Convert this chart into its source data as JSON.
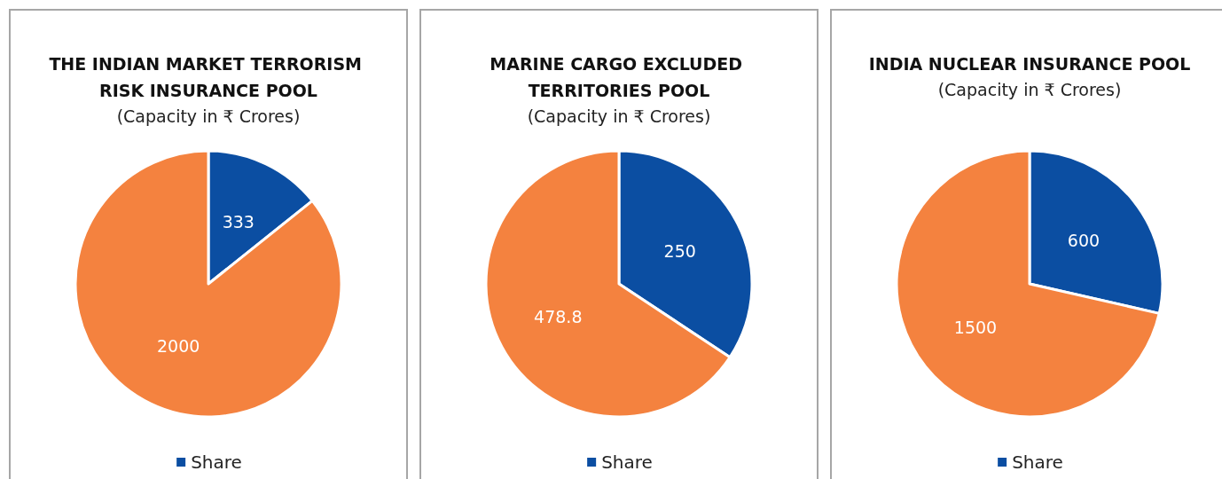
{
  "chart_data": [
    {
      "type": "pie",
      "title": "THE INDIAN MARKET TERRORISM RISK INSURANCE POOL",
      "subtitle": "(Capacity in ₹ Crores)",
      "categories": [
        "Share",
        null
      ],
      "values": [
        333,
        2000
      ],
      "colors": [
        "#0b4ea2",
        "#f4823f"
      ],
      "data_labels": true,
      "legend": "bottom"
    },
    {
      "type": "pie",
      "title": "MARINE CARGO EXCLUDED TERRITORIES POOL",
      "subtitle": "(Capacity in ₹ Crores)",
      "categories": [
        "Share",
        null
      ],
      "values": [
        250,
        478.8
      ],
      "colors": [
        "#0b4ea2",
        "#f4823f"
      ],
      "data_labels": true,
      "legend": "bottom"
    },
    {
      "type": "pie",
      "title": "INDIA NUCLEAR INSURANCE POOL",
      "subtitle": "(Capacity in ₹ Crores)",
      "categories": [
        "Share",
        null
      ],
      "values": [
        600,
        1500
      ],
      "colors": [
        "#0b4ea2",
        "#f4823f"
      ],
      "data_labels": true,
      "legend": "bottom"
    }
  ]
}
